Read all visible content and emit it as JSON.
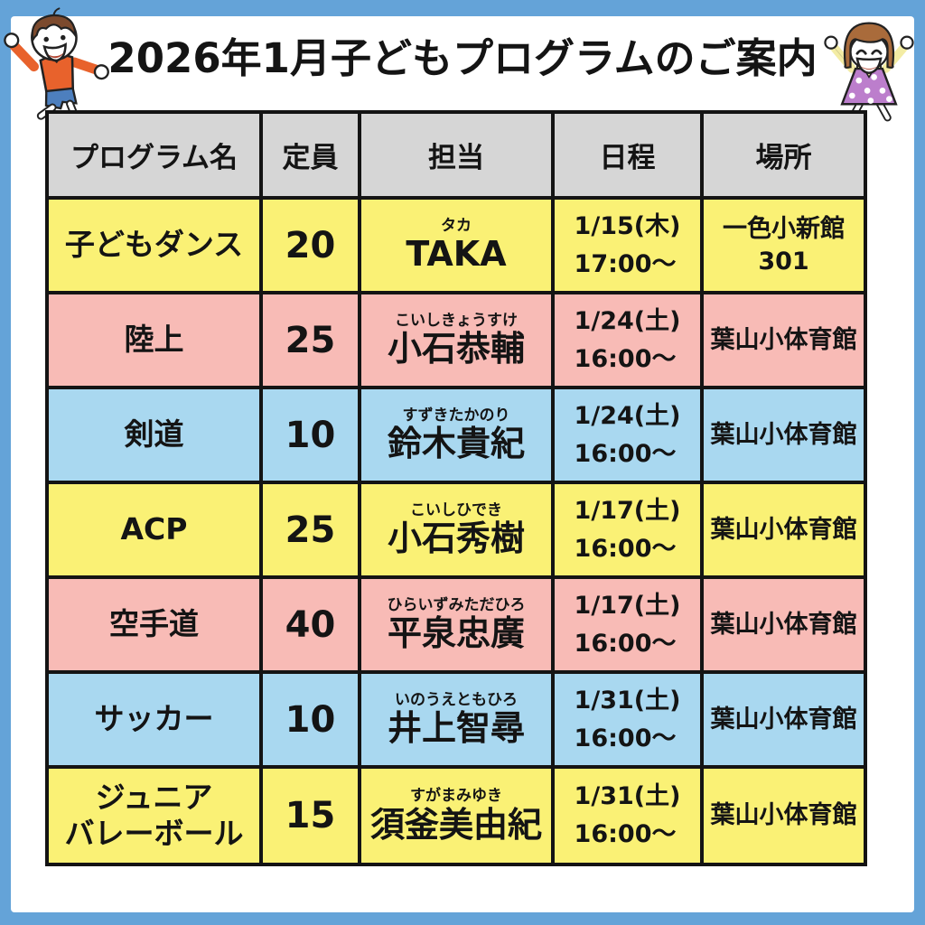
{
  "title": "2026年1月子どもプログラムのご案内",
  "colors": {
    "frame_blue": "#64A3D8",
    "row_yellow": "#FAF175",
    "row_pink": "#F8BBB6",
    "row_blue": "#A9D8F0",
    "header_gray": "#D6D6D6",
    "ink": "#141414"
  },
  "illustrations": {
    "left": "jumping-boy",
    "right": "cheering-girl"
  },
  "table": {
    "headers": [
      "プログラム名",
      "定員",
      "担当",
      "日程",
      "場所"
    ],
    "rows": [
      {
        "program": [
          "子どもダンス"
        ],
        "capacity": "20",
        "furigana": "タカ",
        "instructor": "TAKA",
        "schedule": [
          "1/15(木)",
          "17:00〜"
        ],
        "place": [
          "一色小新館",
          "301"
        ],
        "color": "yellow"
      },
      {
        "program": [
          "陸上"
        ],
        "capacity": "25",
        "furigana": "こいしきょうすけ",
        "instructor": "小石恭輔",
        "schedule": [
          "1/24(土)",
          "16:00〜"
        ],
        "place": [
          "葉山小体育館"
        ],
        "color": "pink"
      },
      {
        "program": [
          "剣道"
        ],
        "capacity": "10",
        "furigana": "すずきたかのり",
        "instructor": "鈴木貴紀",
        "schedule": [
          "1/24(土)",
          "16:00〜"
        ],
        "place": [
          "葉山小体育館"
        ],
        "color": "blue"
      },
      {
        "program": [
          "ACP"
        ],
        "capacity": "25",
        "furigana": "こいしひでき",
        "instructor": "小石秀樹",
        "schedule": [
          "1/17(土)",
          "16:00〜"
        ],
        "place": [
          "葉山小体育館"
        ],
        "color": "yellow"
      },
      {
        "program": [
          "空手道"
        ],
        "capacity": "40",
        "furigana": "ひらいずみただひろ",
        "instructor": "平泉忠廣",
        "schedule": [
          "1/17(土)",
          "16:00〜"
        ],
        "place": [
          "葉山小体育館"
        ],
        "color": "pink"
      },
      {
        "program": [
          "サッカー"
        ],
        "capacity": "10",
        "furigana": "いのうえともひろ",
        "instructor": "井上智尋",
        "schedule": [
          "1/31(土)",
          "16:00〜"
        ],
        "place": [
          "葉山小体育館"
        ],
        "color": "blue"
      },
      {
        "program": [
          "ジュニア",
          "バレーボール"
        ],
        "capacity": "15",
        "furigana": "すがまみゆき",
        "instructor": "須釜美由紀",
        "schedule": [
          "1/31(土)",
          "16:00〜"
        ],
        "place": [
          "葉山小体育館"
        ],
        "color": "yellow"
      }
    ]
  }
}
